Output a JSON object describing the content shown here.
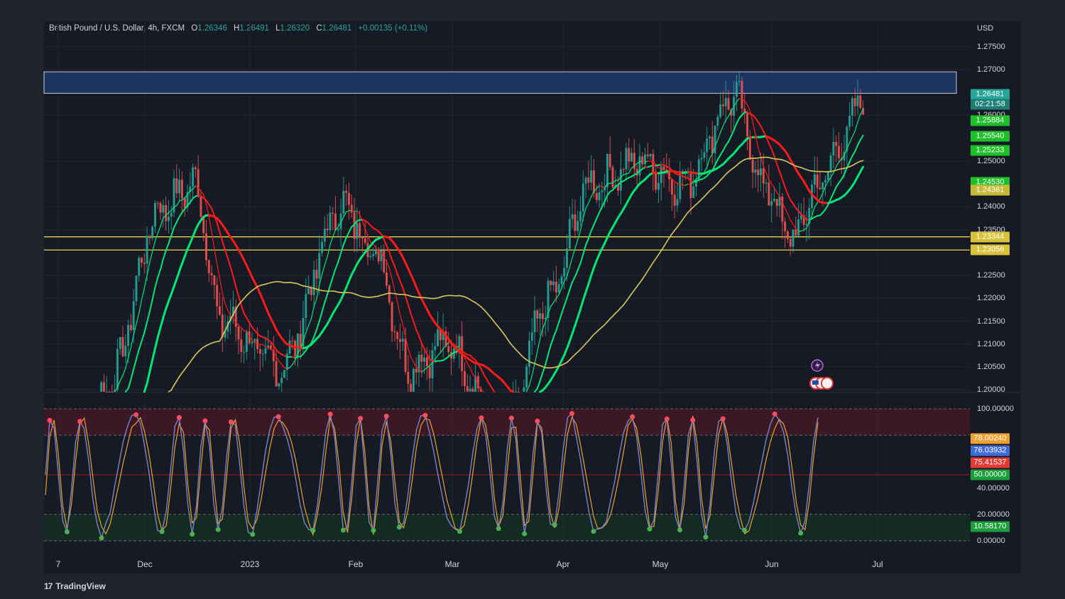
{
  "header": {
    "symbol": "British Pound / U.S. Dollar, 4h, FXCM",
    "open_label": "O",
    "open": "1.26346",
    "high_label": "H",
    "high": "1.26491",
    "low_label": "L",
    "low": "1.26320",
    "close_label": "C",
    "close": "1.26481",
    "change": "+0.00135 (+0.11%)"
  },
  "currency": "USD",
  "countdown": "02:21:58",
  "branding": {
    "name": "TradingView",
    "logo": "17"
  },
  "colors": {
    "up": "#26a69a",
    "down": "#ef5350",
    "green_ma": "#00e676",
    "red_ma": "#ff1a1a",
    "slow_ma": "#d4c85a",
    "zone": "#1e3a6e",
    "level": "#e8d44d",
    "k_line": "#7b83c9",
    "d_line": "#f0a030"
  },
  "chart_data": [
    {
      "type": "candlestick",
      "title": "British Pound / U.S. Dollar, 4h, FXCM",
      "x_tick_labels": [
        "7",
        "Dec",
        "2023",
        "Feb",
        "Mar",
        "Apr",
        "May",
        "Jun",
        "Jul"
      ],
      "y_tick_labels": [
        "1.27500",
        "1.27000",
        "1.26000",
        "1.25000",
        "1.24000",
        "1.23500",
        "1.22500",
        "1.22000",
        "1.21500",
        "1.21000",
        "1.20500",
        "1.20000"
      ],
      "ylim": [
        1.2,
        1.28
      ],
      "trend_path": [
        [
          "2022-11-07",
          1.14
        ],
        [
          "2022-11-20",
          1.2
        ],
        [
          "2022-12-05",
          1.24
        ],
        [
          "2022-12-14",
          1.245
        ],
        [
          "2022-12-21",
          1.215
        ],
        [
          "2023-01-06",
          1.205
        ],
        [
          "2023-01-23",
          1.24
        ],
        [
          "2023-02-01",
          1.23
        ],
        [
          "2023-02-10",
          1.205
        ],
        [
          "2023-02-20",
          1.21
        ],
        [
          "2023-03-08",
          1.19
        ],
        [
          "2023-03-20",
          1.22
        ],
        [
          "2023-03-31",
          1.245
        ],
        [
          "2023-04-14",
          1.25
        ],
        [
          "2023-04-25",
          1.245
        ],
        [
          "2023-05-09",
          1.264
        ],
        [
          "2023-05-17",
          1.245
        ],
        [
          "2023-05-25",
          1.233
        ],
        [
          "2023-06-01",
          1.245
        ],
        [
          "2023-06-08",
          1.255
        ],
        [
          "2023-06-13",
          1.26481
        ]
      ],
      "resistance_zone": [
        1.26481,
        1.2695
      ],
      "support_levels": [
        1.23344,
        1.23056
      ],
      "price_labels": [
        {
          "value": "1.26481",
          "color": "#26a69a"
        },
        {
          "value": "1.25884",
          "color": "#1fbf2a"
        },
        {
          "value": "1.25540",
          "color": "#1fbf2a"
        },
        {
          "value": "1.25233",
          "color": "#1fbf2a"
        },
        {
          "value": "1.24530",
          "color": "#1fbf2a"
        },
        {
          "value": "1.24361",
          "color": "#c8b93a"
        },
        {
          "value": "1.23344",
          "color": "#d9c23a"
        },
        {
          "value": "1.23056",
          "color": "#d9c23a"
        }
      ],
      "moving_average_series": [
        {
          "color": "#00e676",
          "period": "fast"
        },
        {
          "color": "#00e676",
          "period": "medium"
        },
        {
          "color": "#d4c85a",
          "period": "slow"
        }
      ]
    },
    {
      "type": "line",
      "title": "",
      "y_tick_labels": [
        "100.00000",
        "40.00000",
        "20.00000",
        "0.00000"
      ],
      "ylim": [
        0,
        100
      ],
      "levels": [
        100,
        80,
        50,
        20,
        0
      ],
      "overbought_band": [
        80,
        100
      ],
      "oversold_band": [
        0,
        20
      ],
      "value_labels": [
        {
          "value": "78.00240",
          "color": "#f0a030"
        },
        {
          "value": "76.03932",
          "color": "#3e6bd6"
        },
        {
          "value": "75.41537",
          "color": "#e53935"
        },
        {
          "value": "50.00000",
          "color": "#1a9e3a"
        },
        {
          "value": "10.58170",
          "color": "#1a9e3a"
        }
      ]
    }
  ]
}
